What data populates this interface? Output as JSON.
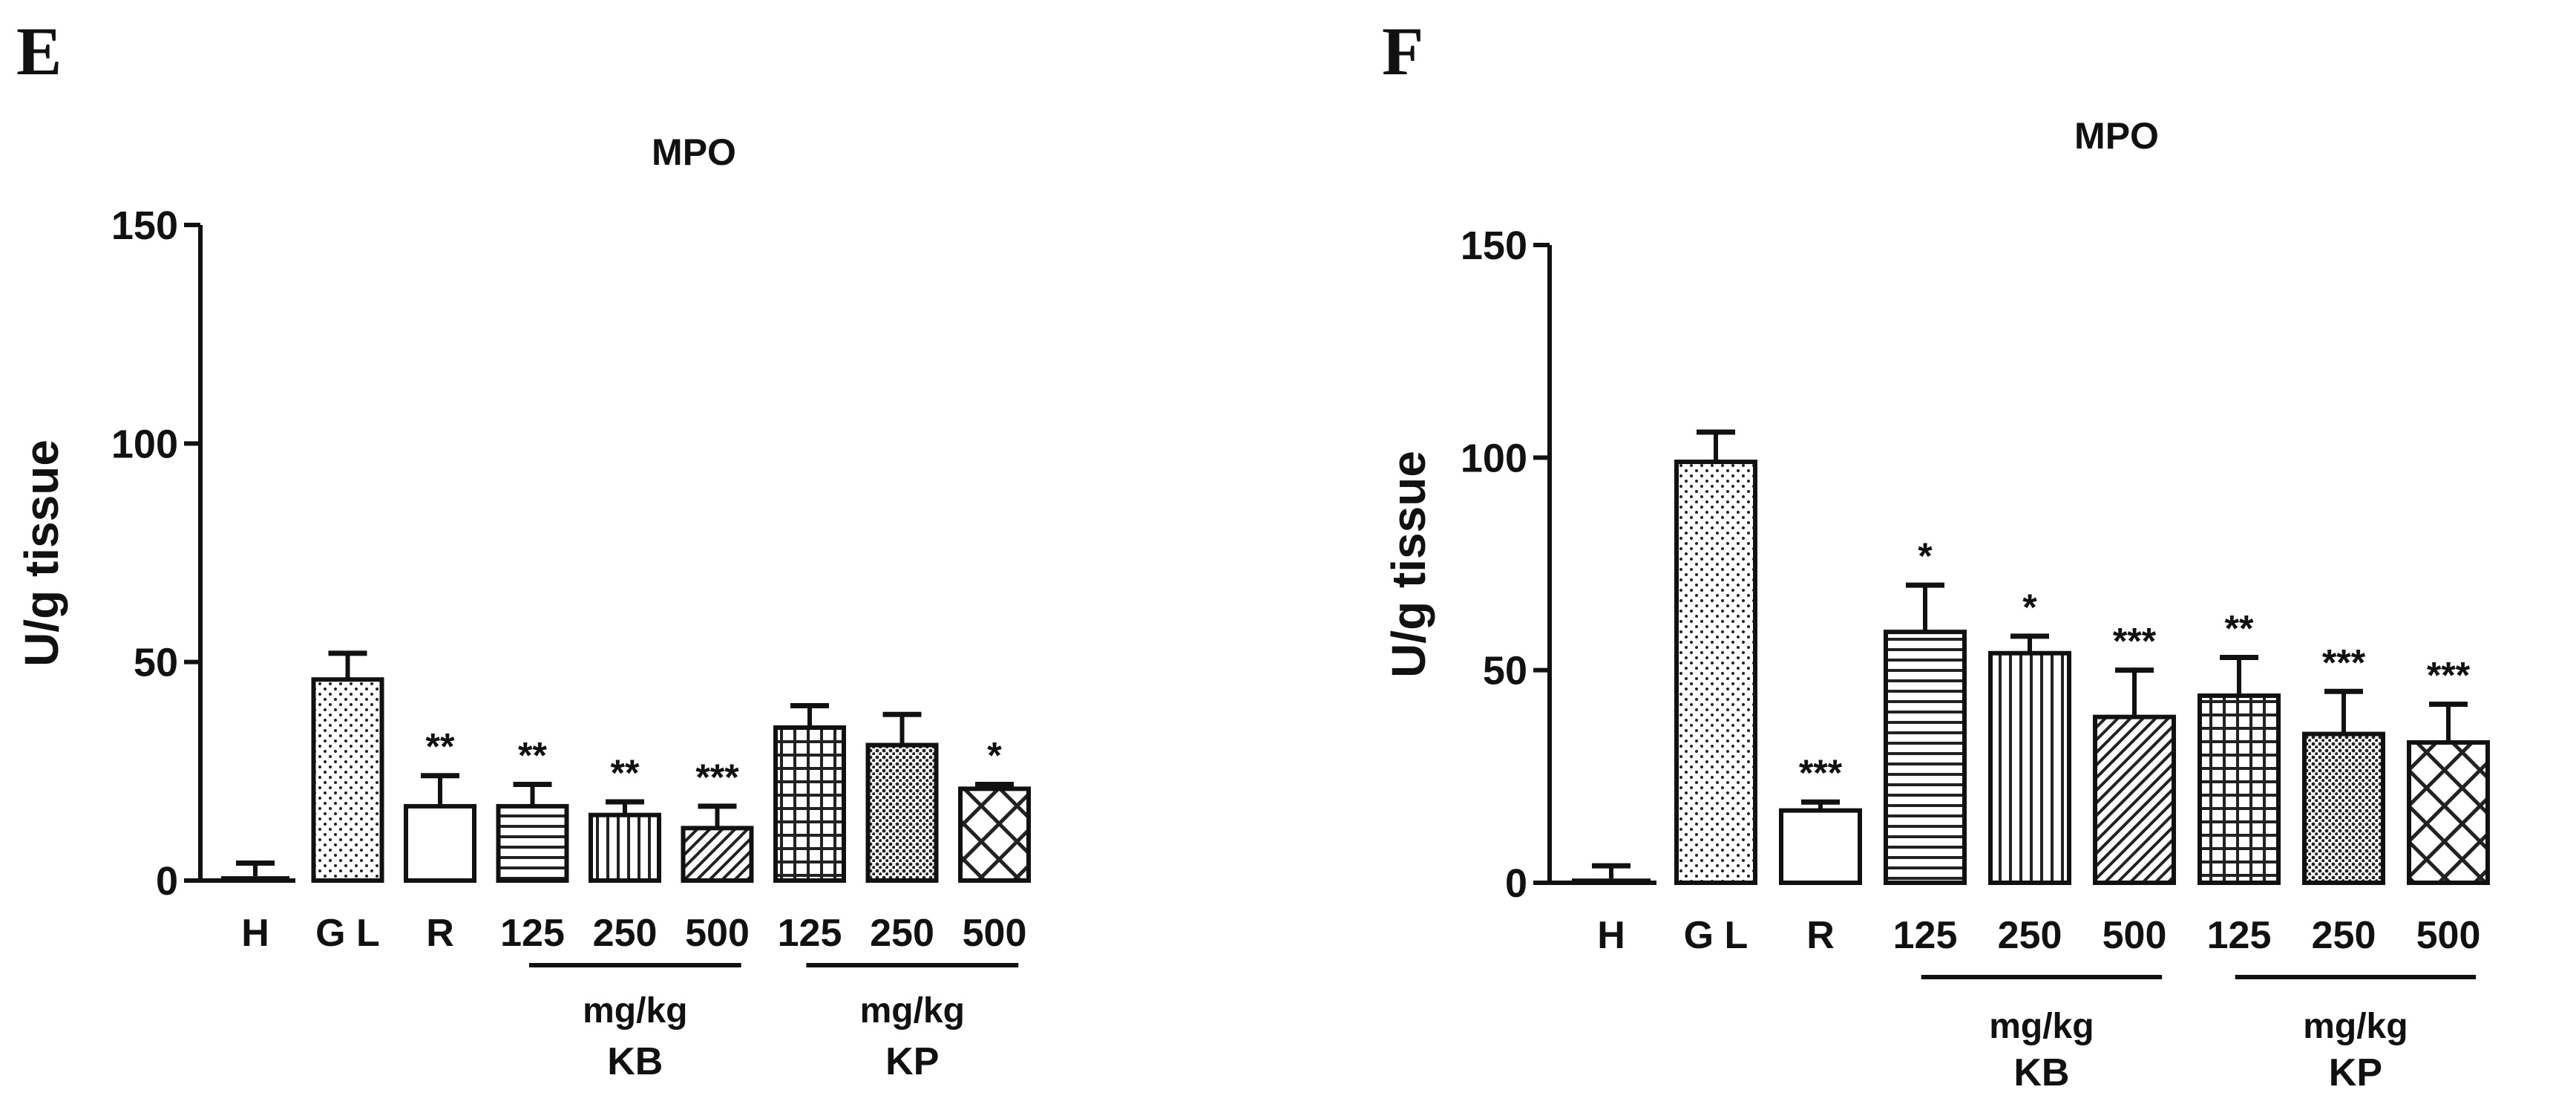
{
  "chart_data": [
    {
      "type": "bar",
      "panel": "E",
      "title": "MPO",
      "ylabel": "U/g tissue",
      "ylim": [
        0,
        150
      ],
      "yticks": [
        "0",
        "50",
        "100",
        "150"
      ],
      "categories": [
        "H",
        "G L",
        "R",
        "125",
        "250",
        "500",
        "125",
        "250",
        "500"
      ],
      "values": [
        1,
        46,
        17,
        17,
        15,
        12,
        35,
        31,
        21
      ],
      "errors": [
        3,
        6,
        7,
        5,
        3,
        5,
        5,
        7,
        1
      ],
      "significance": [
        "",
        "",
        "**",
        "**",
        "**",
        "***",
        "",
        "",
        "*"
      ],
      "patterns": [
        "solid",
        "dots",
        "plain",
        "hlines",
        "vlines",
        "diag",
        "grid",
        "dense-dots",
        "crosshatch"
      ],
      "groups": [
        {
          "unit": "mg/kg",
          "name": "KB",
          "from": 3,
          "to": 5
        },
        {
          "unit": "mg/kg",
          "name": "KP",
          "from": 6,
          "to": 8
        }
      ]
    },
    {
      "type": "bar",
      "panel": "F",
      "title": "MPO",
      "ylabel": "U/g tissue",
      "ylim": [
        0,
        150
      ],
      "yticks": [
        "0",
        "50",
        "100",
        "150"
      ],
      "categories": [
        "H",
        "G L",
        "R",
        "125",
        "250",
        "500",
        "125",
        "250",
        "500"
      ],
      "values": [
        1,
        99,
        17,
        59,
        54,
        39,
        44,
        35,
        33
      ],
      "errors": [
        3,
        7,
        2,
        11,
        4,
        11,
        9,
        10,
        9
      ],
      "significance": [
        "",
        "",
        "***",
        "*",
        "*",
        "***",
        "**",
        "***",
        "***"
      ],
      "patterns": [
        "solid",
        "dots",
        "plain",
        "hlines",
        "vlines",
        "diag",
        "grid",
        "dense-dots",
        "crosshatch"
      ],
      "groups": [
        {
          "unit": "mg/kg",
          "name": "KB",
          "from": 3,
          "to": 5
        },
        {
          "unit": "mg/kg",
          "name": "KP",
          "from": 6,
          "to": 8
        }
      ]
    }
  ]
}
